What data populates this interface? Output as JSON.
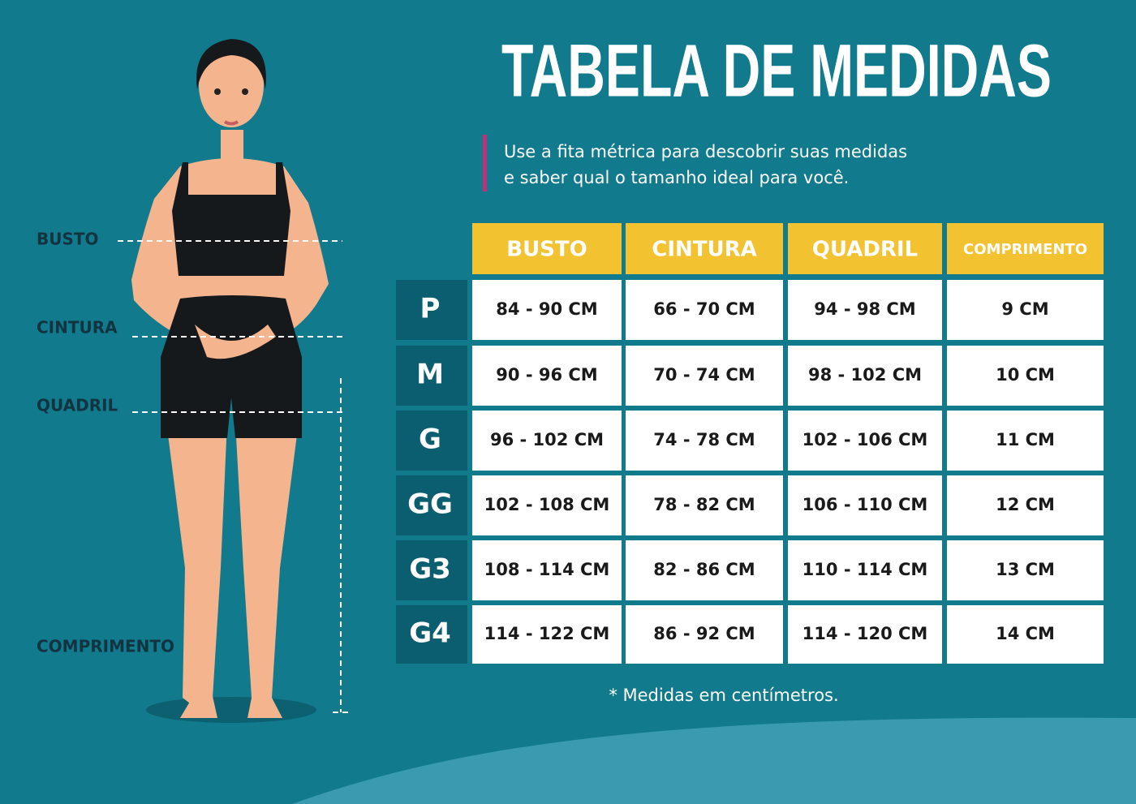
{
  "header": {
    "title": "TABELA DE MEDIDAS",
    "subtitle": [
      "Use a fita métrica para descobrir suas medidas",
      "e saber qual o tamanho ideal para você."
    ]
  },
  "figure": {
    "labels": [
      "BUSTO",
      "CINTURA",
      "QUADRIL",
      "COMPRIMENTO"
    ]
  },
  "table": {
    "columns": [
      "BUSTO",
      "CINTURA",
      "QUADRIL",
      "COMPRIMENTO"
    ],
    "rows": [
      {
        "size": "P",
        "cells": [
          "84 - 90 CM",
          "66 - 70 CM",
          "94 - 98 CM",
          "9 CM"
        ]
      },
      {
        "size": "M",
        "cells": [
          "90 - 96 CM",
          "70 - 74 CM",
          "98 - 102 CM",
          "10 CM"
        ]
      },
      {
        "size": "G",
        "cells": [
          "96 - 102 CM",
          "74 - 78 CM",
          "102 - 106 CM",
          "11 CM"
        ]
      },
      {
        "size": "GG",
        "cells": [
          "102 - 108 CM",
          "78 - 82 CM",
          "106 - 110 CM",
          "12 CM"
        ]
      },
      {
        "size": "G3",
        "cells": [
          "108 - 114 CM",
          "82 - 86 CM",
          "110 - 114 CM",
          "13 CM"
        ]
      },
      {
        "size": "G4",
        "cells": [
          "114 - 122 CM",
          "86 - 92 CM",
          "114 - 120 CM",
          "14 CM"
        ]
      }
    ]
  },
  "footnote": "* Medidas em centímetros."
}
